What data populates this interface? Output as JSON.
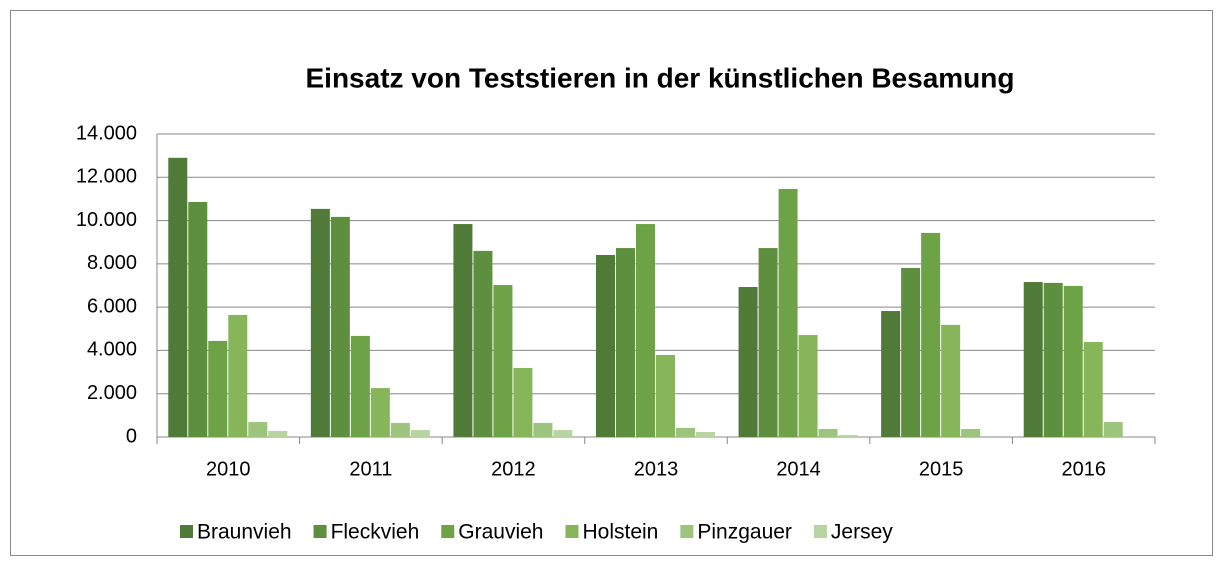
{
  "chart_data": {
    "type": "bar",
    "title": "Einsatz von Teststieren in der künstlichen Besamung",
    "categories": [
      "2010",
      "2011",
      "2012",
      "2013",
      "2014",
      "2015",
      "2016"
    ],
    "series": [
      {
        "name": "Braunvieh",
        "color": "#4f7a38",
        "values": [
          12900,
          10540,
          9840,
          8410,
          6930,
          5820,
          7160
        ]
      },
      {
        "name": "Fleckvieh",
        "color": "#5e8f3f",
        "values": [
          10860,
          10170,
          8600,
          8730,
          8730,
          7810,
          7120
        ]
      },
      {
        "name": "Grauvieh",
        "color": "#6ea246",
        "values": [
          4440,
          4670,
          7020,
          9840,
          11460,
          9430,
          6980
        ]
      },
      {
        "name": "Holstein",
        "color": "#86b55a",
        "values": [
          5640,
          2260,
          3190,
          3790,
          4710,
          5180,
          4390
        ]
      },
      {
        "name": "Pinzgauer",
        "color": "#9dc47d",
        "values": [
          690,
          650,
          650,
          420,
          370,
          370,
          690
        ]
      },
      {
        "name": "Jersey",
        "color": "#b8d4a0",
        "values": [
          280,
          320,
          320,
          230,
          90,
          null,
          null
        ]
      }
    ],
    "ylim": [
      0,
      14000
    ],
    "yticks": [
      0,
      {
        "value": 2000,
        "label": "2.000"
      },
      {
        "value": 4000,
        "label": "4.000"
      },
      {
        "value": 6000,
        "label": "6.000"
      },
      {
        "value": 8000,
        "label": "8.000"
      },
      {
        "value": 10000,
        "label": "10.000"
      },
      {
        "value": 12000,
        "label": "12.000"
      },
      {
        "value": 14000,
        "label": "14.000"
      }
    ],
    "grid": true,
    "legend": "bottom"
  }
}
